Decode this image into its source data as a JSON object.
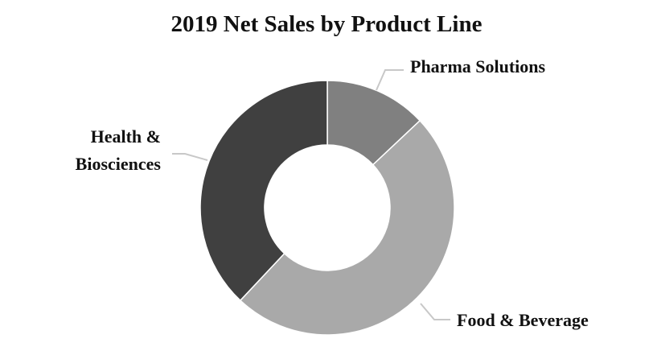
{
  "chart_data": {
    "type": "pie",
    "subtype": "donut",
    "title": "2019 Net Sales by Product Line",
    "slices": [
      {
        "label_lines": [
          "Pharma Solutions"
        ],
        "value": 13,
        "color": "#808080"
      },
      {
        "label_lines": [
          "Food & Beverage"
        ],
        "value": 49,
        "color": "#a9a9a9"
      },
      {
        "label_lines": [
          "Health &",
          "Biosciences"
        ],
        "value": 38,
        "color": "#404040"
      }
    ],
    "legend": "none",
    "data_labels": "category names outside with leader lines"
  }
}
